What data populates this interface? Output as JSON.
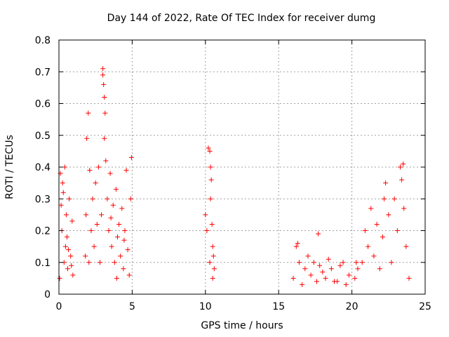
{
  "chart_data": {
    "type": "scatter",
    "title": "Day 144 of 2022, Rate Of TEC Index for receiver dumg",
    "xlabel": "GPS time / hours",
    "ylabel": "ROTI / TECUs",
    "xlim": [
      0,
      25
    ],
    "ylim": [
      0,
      0.8
    ],
    "xticks": [
      0,
      5,
      10,
      15,
      20,
      25
    ],
    "yticks": [
      0,
      0.1,
      0.2,
      0.3,
      0.4,
      0.5,
      0.6,
      0.7,
      0.8
    ],
    "grid": true,
    "marker": "+",
    "color": "#ff0000",
    "series": [
      {
        "name": "ROTI",
        "x": [
          0.05,
          0.1,
          0.2,
          0.3,
          0.35,
          0.4,
          0.45,
          0.5,
          0.6,
          0.7,
          0.8,
          0.9,
          0.95,
          0.15,
          0.25,
          0.55,
          0.65,
          0.85,
          1.8,
          1.85,
          1.9,
          2.0,
          2.1,
          2.2,
          2.3,
          2.4,
          2.5,
          2.6,
          2.7,
          2.8,
          2.9,
          3.0,
          3.0,
          3.05,
          3.1,
          3.15,
          3.1,
          3.2,
          3.3,
          3.4,
          3.5,
          3.6,
          3.7,
          3.8,
          3.9,
          4.0,
          4.1,
          4.2,
          4.3,
          4.4,
          4.5,
          4.6,
          4.7,
          4.8,
          4.9,
          4.95,
          2.05,
          3.55,
          3.95,
          4.45,
          10.0,
          10.1,
          10.2,
          10.3,
          10.35,
          10.4,
          10.5,
          10.6,
          10.3,
          10.35,
          10.45,
          10.5,
          10.55,
          16.0,
          16.2,
          16.4,
          16.6,
          16.8,
          17.0,
          17.2,
          17.4,
          17.6,
          17.8,
          18.0,
          18.2,
          18.4,
          18.6,
          18.8,
          17.7,
          16.3,
          19.0,
          19.2,
          19.4,
          19.6,
          19.8,
          20.2,
          20.3,
          20.4,
          20.7,
          20.9,
          21.1,
          21.3,
          21.5,
          21.7,
          21.9,
          22.1,
          22.3,
          22.5,
          22.7,
          22.9,
          23.1,
          23.3,
          23.5,
          23.7,
          23.9,
          22.2,
          23.4,
          23.55
        ],
        "y": [
          0.05,
          0.38,
          0.2,
          0.32,
          0.1,
          0.4,
          0.15,
          0.25,
          0.08,
          0.3,
          0.12,
          0.23,
          0.06,
          0.28,
          0.35,
          0.18,
          0.14,
          0.09,
          0.12,
          0.25,
          0.49,
          0.57,
          0.39,
          0.2,
          0.3,
          0.15,
          0.35,
          0.22,
          0.4,
          0.1,
          0.25,
          0.71,
          0.69,
          0.66,
          0.62,
          0.57,
          0.49,
          0.42,
          0.3,
          0.2,
          0.38,
          0.15,
          0.28,
          0.1,
          0.33,
          0.18,
          0.22,
          0.12,
          0.27,
          0.08,
          0.2,
          0.39,
          0.14,
          0.06,
          0.3,
          0.43,
          0.1,
          0.24,
          0.05,
          0.17,
          0.25,
          0.2,
          0.46,
          0.45,
          0.4,
          0.36,
          0.15,
          0.08,
          0.1,
          0.3,
          0.22,
          0.05,
          0.12,
          0.05,
          0.15,
          0.1,
          0.03,
          0.08,
          0.12,
          0.06,
          0.1,
          0.04,
          0.09,
          0.07,
          0.05,
          0.11,
          0.08,
          0.04,
          0.19,
          0.16,
          0.04,
          0.09,
          0.1,
          0.03,
          0.06,
          0.05,
          0.1,
          0.08,
          0.1,
          0.2,
          0.15,
          0.27,
          0.12,
          0.22,
          0.08,
          0.18,
          0.35,
          0.25,
          0.1,
          0.3,
          0.2,
          0.4,
          0.41,
          0.15,
          0.05,
          0.3,
          0.36,
          0.27
        ]
      }
    ]
  }
}
